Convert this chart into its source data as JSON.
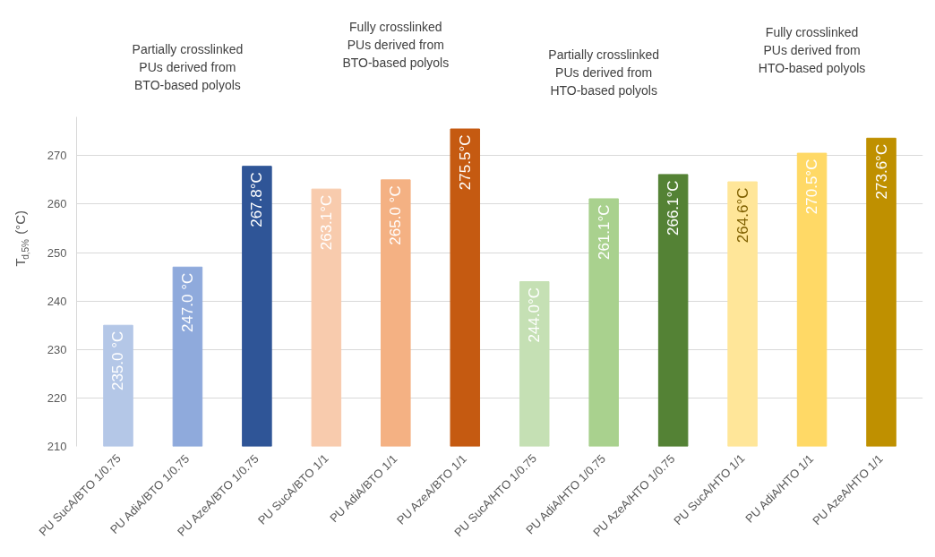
{
  "chart_data": {
    "type": "bar",
    "categories": [
      "PU SucA/BTO 1/0.75",
      "PU AdiA/BTO 1/0.75",
      "PU AzeA/BTO 1/0.75",
      "PU SucA/BTO 1/1",
      "PU AdiA/BTO 1/1",
      "PU AzeA/BTO 1/1",
      "PU SucA/HTO 1/0.75",
      "PU AdiA/HTO 1/0.75",
      "PU AzeA/HTO 1/0.75",
      "PU SucA/HTO 1/1",
      "PU AdiA/HTO 1/1",
      "PU AzeA/HTO 1/1"
    ],
    "values": [
      235.0,
      247.0,
      267.8,
      263.1,
      265.0,
      275.5,
      244.0,
      261.1,
      266.1,
      264.6,
      270.5,
      273.6
    ],
    "value_labels": [
      "235.0 °C",
      "247.0 °C",
      "267.8°C",
      "263.1°C",
      "265.0 °C",
      "275.5°C",
      "244.0°C",
      "261.1°C",
      "266.1°C",
      "264.6°C",
      "270.5°C",
      "273.6°C"
    ],
    "colors": [
      "#b4c7e7",
      "#8faadc",
      "#2f5597",
      "#f8cbad",
      "#f4b183",
      "#c55a11",
      "#c5e0b4",
      "#a9d18e",
      "#548235",
      "#ffe699",
      "#ffd966",
      "#bf9000"
    ],
    "ylabel": "T$_{d,5%}$ (°C)",
    "ylim": [
      210,
      278
    ],
    "yticks": [
      210,
      220,
      230,
      240,
      250,
      260,
      270
    ],
    "grid": "y",
    "annotations": [
      "Partially crosslinked\nPUs derived from\nBTO-based polyols",
      "Fully crosslinked\nPUs derived from\nBTO-based polyols",
      "Partially crosslinked\nPUs derived from\nHTO-based polyols",
      "Fully crosslinked\nPUs derived from\nHTO-based polyols"
    ]
  }
}
